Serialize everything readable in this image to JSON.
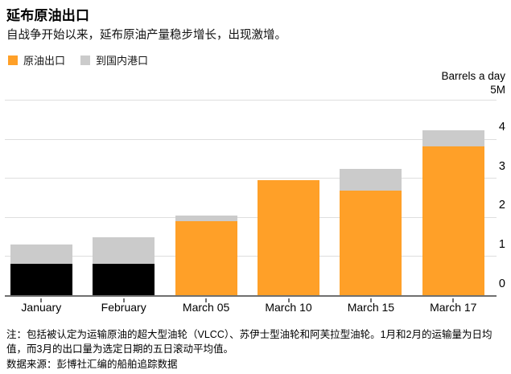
{
  "header": {
    "title": "延布原油出口",
    "subtitle": "自战争开始以来，延布原油产量稳步增长，出现激增。"
  },
  "legend": {
    "items": [
      {
        "id": "crude-exports",
        "label": "原油出口",
        "color": "#FFA028"
      },
      {
        "id": "domestic-ports",
        "label": "到国内港口",
        "color": "#CBCBCB"
      }
    ]
  },
  "y_axis": {
    "unit_label": "Barrels a day",
    "max_label": "5M",
    "ticks": [
      0,
      1,
      2,
      3,
      4
    ]
  },
  "chart_data": {
    "type": "bar",
    "stacked": true,
    "title": "延布原油出口",
    "ylabel": "Barrels a day",
    "ylim": [
      0,
      5
    ],
    "gridlines": [
      1,
      2,
      3,
      4,
      5
    ],
    "legend_position": "top-left",
    "categories": [
      "January",
      "February",
      "March 05",
      "March 10",
      "March 15",
      "March 17"
    ],
    "series": [
      {
        "name": "原油出口",
        "values": [
          0.8,
          0.81,
          1.9,
          2.95,
          2.67,
          3.81
        ],
        "bar_colors": [
          "#000000",
          "#000000",
          "#FFA028",
          "#FFA028",
          "#FFA028",
          "#FFA028"
        ]
      },
      {
        "name": "到国内港口",
        "values": [
          0.5,
          0.67,
          0.13,
          0.0,
          0.56,
          0.41
        ],
        "color": "#CBCBCB"
      }
    ]
  },
  "footnote": {
    "note": "注：包括被认定为运输原油的超大型油轮（VLCC）、苏伊士型油轮和阿芙拉型油轮。1月和2月的运输量为日均值，而3月的出口量为选定日期的五日滚动平均值。",
    "source": "数据来源：彭博社汇编的船舶追踪数据"
  },
  "colors": {
    "orange": "#FFA028",
    "gray": "#CBCBCB",
    "black": "#000000",
    "gridline": "#DEDEDE",
    "axis": "#707070",
    "text": "#000000"
  }
}
